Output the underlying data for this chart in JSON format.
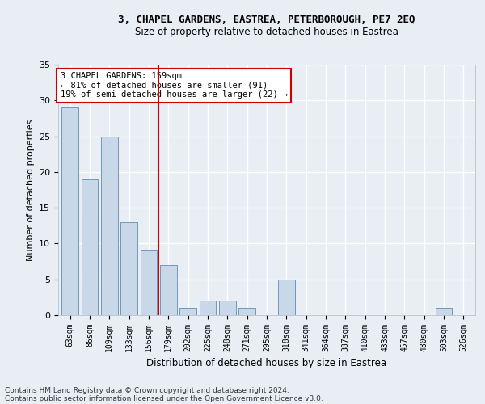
{
  "title1": "3, CHAPEL GARDENS, EASTREA, PETERBOROUGH, PE7 2EQ",
  "title2": "Size of property relative to detached houses in Eastrea",
  "xlabel": "Distribution of detached houses by size in Eastrea",
  "ylabel": "Number of detached properties",
  "categories": [
    "63sqm",
    "86sqm",
    "109sqm",
    "133sqm",
    "156sqm",
    "179sqm",
    "202sqm",
    "225sqm",
    "248sqm",
    "271sqm",
    "295sqm",
    "318sqm",
    "341sqm",
    "364sqm",
    "387sqm",
    "410sqm",
    "433sqm",
    "457sqm",
    "480sqm",
    "503sqm",
    "526sqm"
  ],
  "values": [
    29,
    19,
    25,
    13,
    9,
    7,
    1,
    2,
    2,
    1,
    0,
    5,
    0,
    0,
    0,
    0,
    0,
    0,
    0,
    1,
    0
  ],
  "bar_color": "#c8d8e8",
  "bar_edgecolor": "#7098b8",
  "vline_x": 4.5,
  "vline_color": "#cc0000",
  "annotation_text": "3 CHAPEL GARDENS: 159sqm\n← 81% of detached houses are smaller (91)\n19% of semi-detached houses are larger (22) →",
  "annotation_box_color": "#ffffff",
  "annotation_box_edgecolor": "#cc0000",
  "ylim": [
    0,
    35
  ],
  "yticks": [
    0,
    5,
    10,
    15,
    20,
    25,
    30,
    35
  ],
  "footnote1": "Contains HM Land Registry data © Crown copyright and database right 2024.",
  "footnote2": "Contains public sector information licensed under the Open Government Licence v3.0.",
  "bg_color": "#e8eef4",
  "grid_color": "#ffffff",
  "title1_fontsize": 9,
  "title2_fontsize": 8.5
}
